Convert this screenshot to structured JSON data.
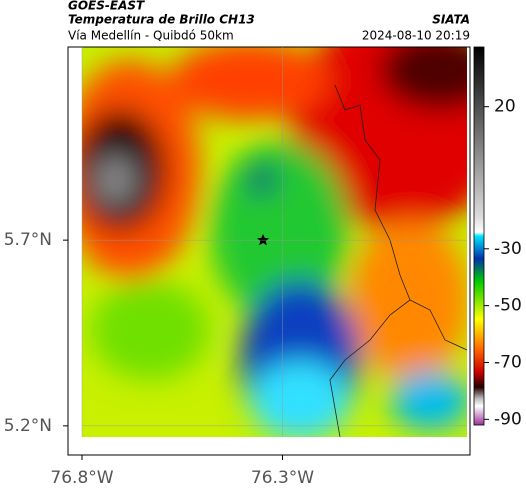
{
  "header": {
    "title": "GOES-EAST",
    "subtitle": "Temperatura de Brillo CH13",
    "route": "Vía Medellín - Quibdó 50km",
    "source": "SIATA",
    "timestamp": "2024-08-10 20:19"
  },
  "map": {
    "xlim": [
      -76.8,
      -75.84
    ],
    "ylim": [
      5.17,
      6.22
    ],
    "xticks": [
      {
        "value": -76.8,
        "label": "76.8°W"
      },
      {
        "value": -76.3,
        "label": "76.3°W"
      }
    ],
    "yticks": [
      {
        "value": 5.7,
        "label": "5.7°N"
      },
      {
        "value": 5.2,
        "label": "5.2°N"
      }
    ],
    "grid": true
  },
  "colorbar": {
    "lim": [
      41,
      -92
    ],
    "ticks": [
      20,
      -30,
      -50,
      -70,
      -90
    ]
  }
}
